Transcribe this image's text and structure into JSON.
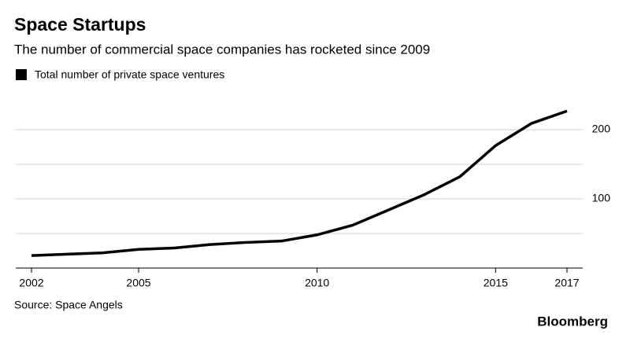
{
  "chart_data": {
    "type": "line",
    "title": "Space Startups",
    "subtitle": "The number of commercial space companies has rocketed since 2009",
    "x": [
      2002,
      2003,
      2004,
      2005,
      2006,
      2007,
      2008,
      2009,
      2010,
      2011,
      2012,
      2013,
      2014,
      2015,
      2016,
      2017
    ],
    "series": [
      {
        "name": "Total number of private space ventures",
        "color": "#000000",
        "values": [
          18,
          20,
          22,
          27,
          29,
          34,
          37,
          39,
          48,
          62,
          84,
          106,
          132,
          177,
          209,
          227
        ]
      }
    ],
    "xlim": [
      2002,
      2017
    ],
    "xticks": [
      2002,
      2005,
      2010,
      2015,
      2017
    ],
    "ylim": [
      0,
      250
    ],
    "yticks": [
      100,
      200
    ],
    "minor_yticks": [
      50,
      150
    ],
    "grid": true,
    "legend": "top-left",
    "source": "Source: Space Angels",
    "logo": "Bloomberg"
  }
}
